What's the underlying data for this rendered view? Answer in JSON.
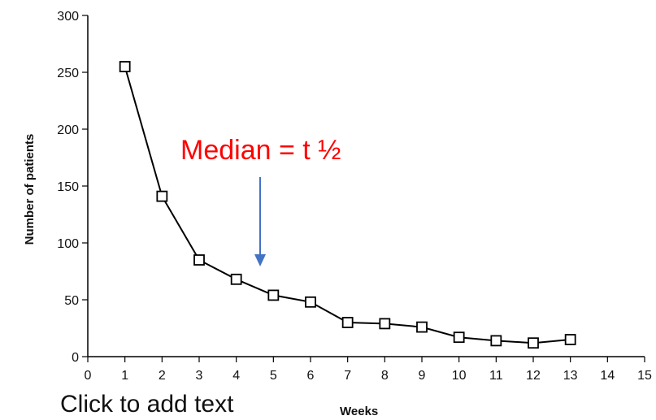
{
  "chart_data": {
    "type": "line",
    "xlabel": "Weeks",
    "ylabel": "Number of patients",
    "xlim": [
      0,
      15
    ],
    "ylim": [
      0,
      300
    ],
    "x_ticks": [
      0,
      1,
      2,
      3,
      4,
      5,
      6,
      7,
      8,
      9,
      10,
      11,
      12,
      13,
      14,
      15
    ],
    "y_ticks": [
      0,
      50,
      100,
      150,
      200,
      250,
      300
    ],
    "grid": false,
    "series": [
      {
        "marker": "square",
        "color": "#000000",
        "x": [
          1,
          2,
          3,
          4,
          5,
          6,
          7,
          8,
          9,
          10,
          11,
          12,
          13
        ],
        "y": [
          255,
          141,
          85,
          68,
          54,
          48,
          30,
          29,
          26,
          17,
          14,
          12,
          15
        ]
      }
    ],
    "annotations": [
      {
        "text": "Median = t ½",
        "color": "#ff0000",
        "arrow_color": "#4472c4",
        "arrow_target_x": 4.65,
        "arrow_target_y": 78
      }
    ]
  },
  "slide": {
    "placeholder_text": "Click to add text"
  }
}
